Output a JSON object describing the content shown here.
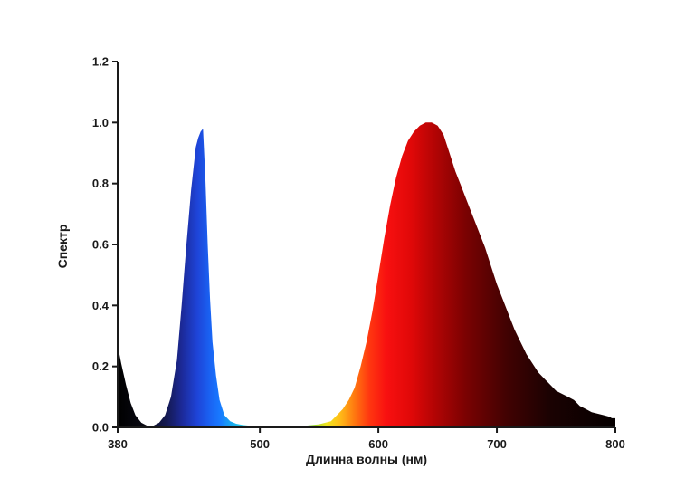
{
  "chart_data": {
    "type": "area",
    "title": "",
    "xlabel": "Длинна волны (нм)",
    "ylabel": "Спектр",
    "xlim": [
      380,
      800
    ],
    "ylim": [
      0,
      1.2
    ],
    "x_ticks": [
      380,
      500,
      600,
      700,
      800
    ],
    "y_ticks": [
      "0.0",
      "0.2",
      "0.4",
      "0.6",
      "0.8",
      "1.0",
      "1.2"
    ],
    "grid": false,
    "legend": "none",
    "fill": "wavelength-colored spectrum gradient",
    "series": [
      {
        "x": [
          380,
          383,
          387,
          391,
          395,
          400,
          405,
          410,
          415,
          420,
          425,
          430,
          434,
          438,
          442,
          446,
          448,
          450,
          452,
          454,
          456,
          458,
          460,
          463,
          466,
          470,
          475,
          480,
          485,
          490,
          495,
          500,
          510,
          520,
          530,
          540,
          550,
          560,
          565,
          570,
          575,
          580,
          585,
          590,
          595,
          600,
          605,
          610,
          615,
          620,
          625,
          630,
          635,
          640,
          645,
          650,
          655,
          660,
          665,
          670,
          675,
          680,
          685,
          690,
          695,
          700,
          705,
          710,
          715,
          720,
          725,
          730,
          735,
          740,
          745,
          750,
          755,
          760,
          765,
          770,
          775,
          780,
          785,
          790,
          795,
          797,
          800
        ],
        "y": [
          0.27,
          0.21,
          0.14,
          0.08,
          0.04,
          0.015,
          0.005,
          0.005,
          0.015,
          0.04,
          0.1,
          0.22,
          0.4,
          0.6,
          0.78,
          0.92,
          0.95,
          0.97,
          0.98,
          0.82,
          0.6,
          0.42,
          0.28,
          0.17,
          0.09,
          0.04,
          0.02,
          0.012,
          0.008,
          0.006,
          0.005,
          0.005,
          0.005,
          0.005,
          0.005,
          0.006,
          0.01,
          0.02,
          0.04,
          0.06,
          0.09,
          0.13,
          0.2,
          0.28,
          0.38,
          0.5,
          0.62,
          0.73,
          0.82,
          0.89,
          0.94,
          0.97,
          0.99,
          1.0,
          1.0,
          0.99,
          0.96,
          0.9,
          0.84,
          0.79,
          0.74,
          0.69,
          0.64,
          0.59,
          0.53,
          0.47,
          0.42,
          0.37,
          0.32,
          0.28,
          0.24,
          0.21,
          0.18,
          0.16,
          0.14,
          0.12,
          0.11,
          0.1,
          0.09,
          0.07,
          0.06,
          0.05,
          0.045,
          0.04,
          0.035,
          0.03,
          0.03
        ]
      }
    ]
  }
}
